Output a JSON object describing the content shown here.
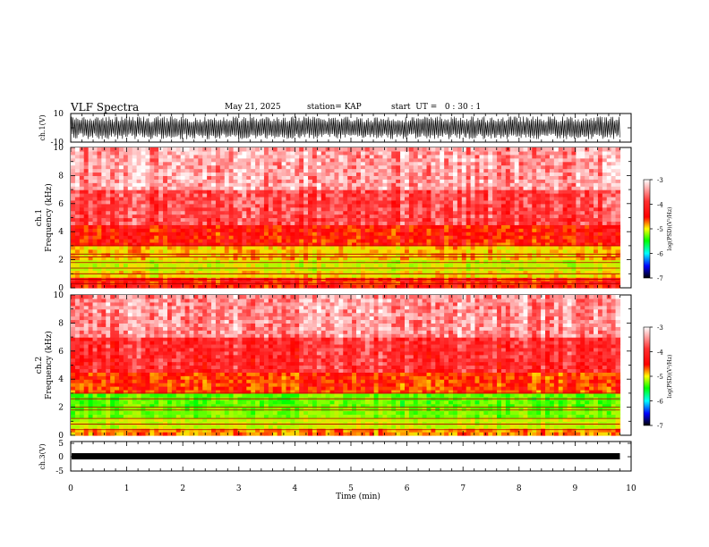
{
  "header": {
    "title": "VLF Spectra",
    "date": "May 21, 2025",
    "station": "station= KAP",
    "start": "start  UT =   0 : 30 : 1"
  },
  "colorbar": {
    "label": "log(PSD)(V²/Hz)",
    "ticks": [
      "-3",
      "-4",
      "-5",
      "-6",
      "-7"
    ],
    "colors": [
      "#ffffff",
      "#ff0000",
      "#ffff00",
      "#00ff00",
      "#00ffff",
      "#0000ff",
      "#000000"
    ]
  },
  "chart_data": [
    {
      "type": "line",
      "title": "",
      "ylabel": "ch.1(V)",
      "xlim": [
        0,
        10
      ],
      "ylim": [
        -10,
        10
      ],
      "yticks": [
        "10",
        "-10"
      ],
      "description_values": "dense VLF waveform filling approximately -8 to +8 V over 0 to 9.8 min",
      "x_end": 9.8
    },
    {
      "type": "heatmap",
      "ylabel": "ch.1",
      "ylabel2": "Frequency (kHz)",
      "xlim": [
        0,
        10
      ],
      "ylim": [
        0,
        10
      ],
      "yticks": [
        "0",
        "2",
        "4",
        "6",
        "8",
        "10"
      ],
      "x_end": 9.8,
      "bands": [
        {
          "f0": 0.0,
          "f1": 0.8,
          "log_psd": -4.0
        },
        {
          "f0": 0.8,
          "f1": 1.3,
          "log_psd": -4.6
        },
        {
          "f0": 1.3,
          "f1": 2.0,
          "log_psd": -4.8
        },
        {
          "f0": 2.0,
          "f1": 3.0,
          "log_psd": -4.5
        },
        {
          "f0": 3.0,
          "f1": 4.5,
          "log_psd": -4.0
        },
        {
          "f0": 4.5,
          "f1": 7.0,
          "log_psd": -3.6
        },
        {
          "f0": 7.0,
          "f1": 10.0,
          "log_psd": -3.3
        }
      ],
      "lines_khz": [
        0.3,
        0.6,
        1.0,
        1.4,
        1.8,
        2.2,
        2.4,
        3.0
      ]
    },
    {
      "type": "heatmap",
      "ylabel": "ch.2",
      "ylabel2": "Frequency (kHz)",
      "xlim": [
        0,
        10
      ],
      "ylim": [
        0,
        10
      ],
      "yticks": [
        "0",
        "2",
        "4",
        "6",
        "8",
        "10"
      ],
      "x_end": 9.8,
      "bands": [
        {
          "f0": 0.0,
          "f1": 0.5,
          "log_psd": -4.3
        },
        {
          "f0": 0.5,
          "f1": 1.2,
          "log_psd": -4.8
        },
        {
          "f0": 1.2,
          "f1": 2.0,
          "log_psd": -5.1
        },
        {
          "f0": 2.0,
          "f1": 3.0,
          "log_psd": -5.2
        },
        {
          "f0": 3.0,
          "f1": 4.5,
          "log_psd": -4.1
        },
        {
          "f0": 4.5,
          "f1": 7.0,
          "log_psd": -3.7
        },
        {
          "f0": 7.0,
          "f1": 10.0,
          "log_psd": -3.35
        }
      ],
      "lines_khz": [
        0.4,
        0.8,
        1.2,
        1.8,
        2.0,
        2.6,
        3.0
      ]
    },
    {
      "type": "line",
      "ylabel": "ch.3(V)",
      "xlabel": "Time (min)",
      "xlim": [
        0,
        10
      ],
      "ylim": [
        -5,
        5
      ],
      "yticks": [
        "5",
        "0",
        "-5"
      ],
      "x_end": 9.8,
      "band_range": [
        -0.6,
        0.6
      ]
    }
  ],
  "xaxis": {
    "label": "Time (min)",
    "ticks": [
      "0",
      "1",
      "2",
      "3",
      "4",
      "5",
      "6",
      "7",
      "8",
      "9",
      "10"
    ]
  }
}
